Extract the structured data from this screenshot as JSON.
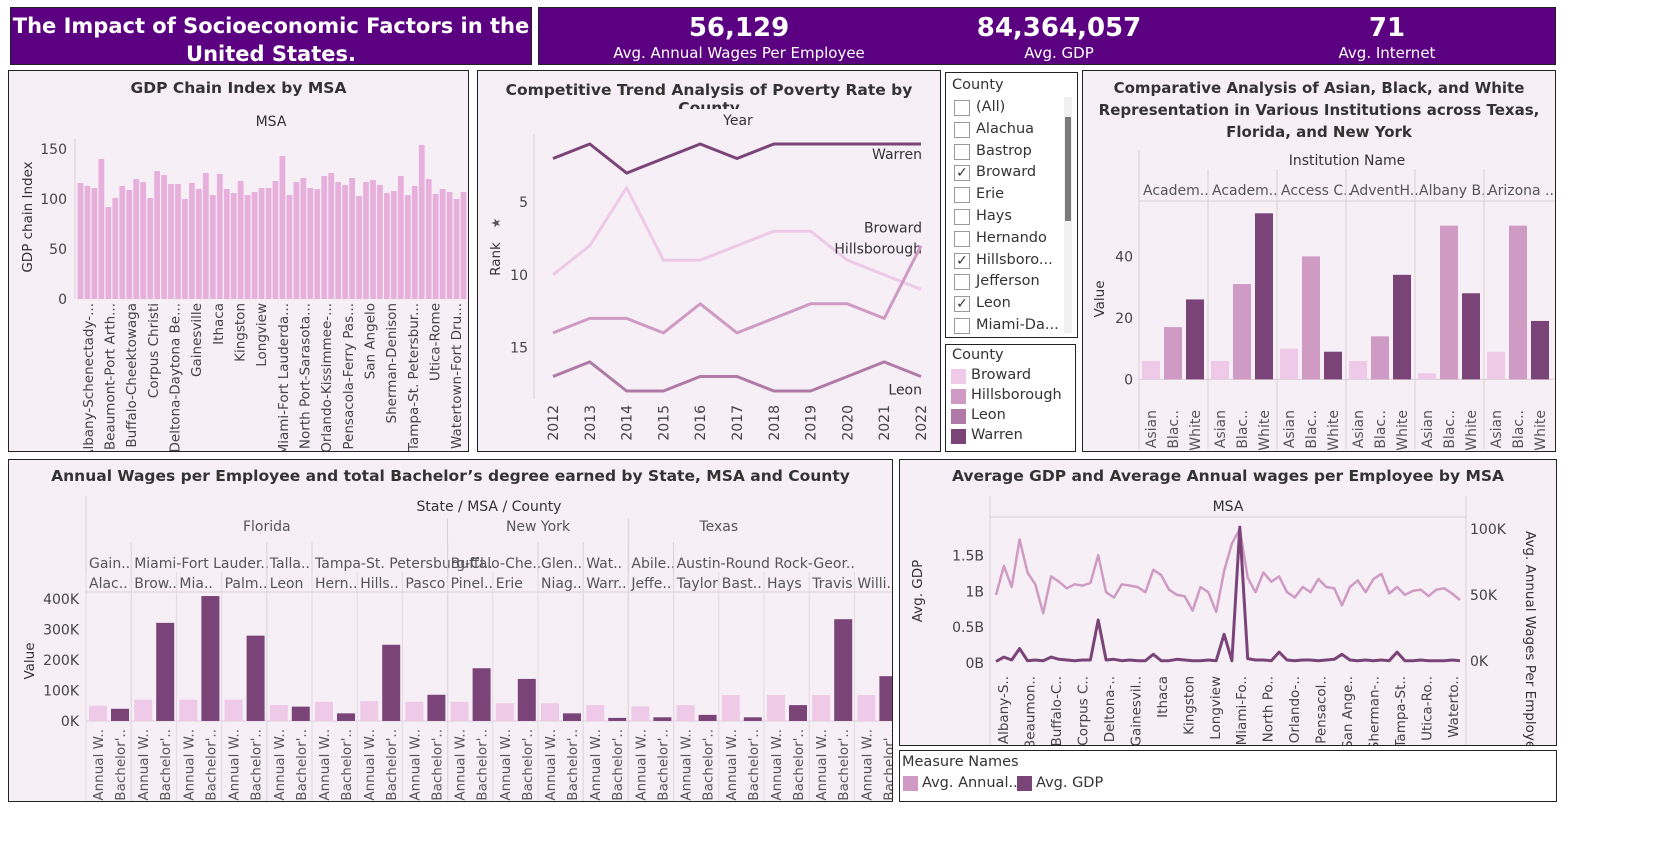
{
  "header": {
    "title": "The Impact of Socioeconomic Factors in the United States.",
    "kpis": [
      {
        "value": "56,129",
        "label": "Avg. Annual Wages Per Employee"
      },
      {
        "value": "84,364,057",
        "label": "Avg. GDP"
      },
      {
        "value": "71",
        "label": "Avg. Internet"
      }
    ]
  },
  "colors": {
    "header_bg": "#5a0080",
    "panel_bg": "#f6eff5",
    "light_pink": "#eec9e8",
    "mid_pink": "#cf9bc4",
    "mauve": "#b07aa8",
    "dark_purple": "#7a4478",
    "bar_pink": "#e7afdc"
  },
  "filter": {
    "title": "County",
    "items": [
      {
        "label": "(All)",
        "checked": false
      },
      {
        "label": "Alachua",
        "checked": false
      },
      {
        "label": "Bastrop",
        "checked": false
      },
      {
        "label": "Broward",
        "checked": true
      },
      {
        "label": "Erie",
        "checked": false
      },
      {
        "label": "Hays",
        "checked": false
      },
      {
        "label": "Hernando",
        "checked": false
      },
      {
        "label": "Hillsboro...",
        "checked": true
      },
      {
        "label": "Jefferson",
        "checked": false
      },
      {
        "label": "Leon",
        "checked": true
      },
      {
        "label": "Miami-Da...",
        "checked": false
      }
    ]
  },
  "county_legend": {
    "title": "County",
    "items": [
      {
        "label": "Broward",
        "color": "#eec9e8"
      },
      {
        "label": "Hillsborough",
        "color": "#cf9bc4"
      },
      {
        "label": "Leon",
        "color": "#b07aa8"
      },
      {
        "label": "Warren",
        "color": "#7a4478"
      }
    ]
  },
  "measure_legend": {
    "title": "Measure Names",
    "items": [
      {
        "label": "Avg. Annual..",
        "color": "#cf9bc4"
      },
      {
        "label": "Avg. GDP",
        "color": "#7a4478"
      }
    ]
  },
  "chart_data": [
    {
      "id": "gdp_chain",
      "type": "bar",
      "title": "GDP Chain Index by MSA",
      "header": "MSA",
      "ylabel": "GDP chain Index",
      "ylim": [
        0,
        160
      ],
      "yticks": [
        0,
        50,
        100,
        150
      ],
      "values": [
        116,
        113,
        111,
        140,
        92,
        101,
        113,
        109,
        120,
        117,
        101,
        128,
        124,
        115,
        115,
        100,
        116,
        110,
        126,
        104,
        125,
        110,
        106,
        118,
        104,
        107,
        111,
        111,
        118,
        143,
        104,
        117,
        121,
        111,
        110,
        123,
        126,
        117,
        114,
        121,
        103,
        117,
        119,
        114,
        106,
        108,
        123,
        104,
        113,
        154,
        120,
        105,
        110,
        107,
        100,
        107
      ],
      "tick_labels": [
        "Albany-Schenectady-...",
        "Beaumont-Port Arth...",
        "Buffalo-Cheektowaga",
        "Corpus Christi",
        "Deltona-Daytona Be...",
        "Gainesville",
        "Ithaca",
        "Kingston",
        "Longview",
        "Miami-Fort Lauderda...",
        "North Port-Sarasota...",
        "Orlando-Kissimmee-...",
        "Pensacola-Ferry Pas...",
        "San Angelo",
        "Sherman-Denison",
        "Tampa-St. Petersbur...",
        "Utica-Rome",
        "Watertown-Fort Dru..."
      ]
    },
    {
      "id": "poverty_rank",
      "type": "line",
      "title": "Competitive Trend Analysis of Poverty Rate by County",
      "header": "Year",
      "ylabel": "Rank",
      "ylim": [
        1,
        18
      ],
      "yticks": [
        5,
        10,
        15
      ],
      "x": [
        2012,
        2013,
        2014,
        2015,
        2016,
        2017,
        2018,
        2019,
        2020,
        2021,
        2022
      ],
      "series": [
        {
          "name": "Warren",
          "color": "#7a4478",
          "values": [
            2,
            1,
            3,
            2,
            1,
            2,
            1,
            1,
            1,
            1,
            1
          ]
        },
        {
          "name": "Hillsborough",
          "color": "#eec9e8",
          "values": [
            10,
            8,
            4,
            9,
            9,
            8,
            7,
            7,
            9,
            10,
            11
          ]
        },
        {
          "name": "Broward",
          "color": "#cf9bc4",
          "values": [
            14,
            13,
            13,
            14,
            12,
            14,
            13,
            12,
            12,
            13,
            8
          ]
        },
        {
          "name": "Leon",
          "color": "#b07aa8",
          "values": [
            17,
            16,
            18,
            18,
            17,
            17,
            18,
            18,
            17,
            16,
            17
          ]
        }
      ]
    },
    {
      "id": "representation",
      "type": "bar",
      "title": "Comparative Analysis of Asian, Black, and White Representation in Various Institutions across Texas, Florida, and New York",
      "header": "Institution Name",
      "ylabel": "Value",
      "ylim": [
        -8,
        58
      ],
      "yticks": [
        0,
        20,
        40
      ],
      "groups": [
        "Academ..",
        "Academ..",
        "Access C..",
        "AdventH..",
        "Albany B..",
        "Arizona .."
      ],
      "categories": [
        "Asian",
        "Blac..",
        "White"
      ],
      "values": [
        [
          6,
          17,
          26
        ],
        [
          6,
          31,
          54
        ],
        [
          10,
          40,
          9
        ],
        [
          6,
          14,
          34
        ],
        [
          2,
          50,
          28
        ],
        [
          9,
          50,
          19
        ]
      ]
    },
    {
      "id": "wages_bachelors",
      "type": "bar",
      "title": "Annual Wages per Employee and total Bachelor’s degree earned by State, MSA and County",
      "header": "State / MSA  / County",
      "ylabel": "Value",
      "ylim": [
        -10000,
        420000
      ],
      "yticks": [
        0,
        100000,
        200000,
        300000,
        400000
      ],
      "ytick_labels": [
        "0K",
        "100K",
        "200K",
        "300K",
        "400K"
      ],
      "states": [
        {
          "name": "Florida",
          "count": 8
        },
        {
          "name": "New York",
          "count": 4
        },
        {
          "name": "Texas",
          "count": 4
        }
      ],
      "msas": [
        {
          "name": "Gain..",
          "count": 1
        },
        {
          "name": "Miami-Fort Lauder..",
          "count": 3
        },
        {
          "name": "Talla..",
          "count": 1
        },
        {
          "name": "Tampa-St. Petersburg-Cl..",
          "count": 3
        },
        {
          "name": "Buffalo-Che..",
          "count": 2
        },
        {
          "name": "Glen..",
          "count": 1
        },
        {
          "name": "Wat..",
          "count": 1
        },
        {
          "name": "Abile..",
          "count": 1
        },
        {
          "name": "Austin-Round Rock-Geor..",
          "count": 3
        }
      ],
      "counties": [
        "Alac..",
        "Brow..",
        "Mia..",
        "Palm..",
        "Leon",
        "Hern..",
        "Hills..",
        "Pasco",
        "Pinel..",
        "Erie",
        "Niag..",
        "Warr..",
        "Jeffe..",
        "Taylor",
        "Bast..",
        "Hays",
        "Travis",
        "Willi.."
      ],
      "categories": [
        "Annual W..",
        "Bachelor'.."
      ],
      "values": [
        [
          50000,
          40000
        ],
        [
          70000,
          322000
        ],
        [
          70000,
          410000
        ],
        [
          70000,
          280000
        ],
        [
          52000,
          47000
        ],
        [
          63000,
          25000
        ],
        [
          65000,
          250000
        ],
        [
          63000,
          86000
        ],
        [
          63000,
          173000
        ],
        [
          58000,
          138000
        ],
        [
          58000,
          25000
        ],
        [
          52000,
          10000
        ],
        [
          48000,
          12000
        ],
        [
          52000,
          20000
        ],
        [
          85000,
          12000
        ],
        [
          85000,
          52000
        ],
        [
          85000,
          334000
        ],
        [
          85000,
          147000
        ]
      ]
    },
    {
      "id": "gdp_wages_msa",
      "type": "line",
      "title": "Average GDP and Average Annual wages per Employee by MSA",
      "header": "MSA",
      "ylabel": "Avg. GDP",
      "ylabel_right": "Avg. Annual Wages Per Employee",
      "ylim": [
        -0.1,
        1.93
      ],
      "yticks": [
        0,
        0.5,
        1,
        1.5
      ],
      "ytick_labels": [
        "0B",
        "0.5B",
        "1B",
        "1.5B"
      ],
      "ylim_right": [
        -7000,
        103000
      ],
      "yticks_right": [
        0,
        50000,
        100000
      ],
      "ytick_labels_right": [
        "0K",
        "50K",
        "100K"
      ],
      "tick_labels": [
        "Albany-S..",
        "Beaumon..",
        "Buffalo-C..",
        "Corpus C..",
        "Deltona-..",
        "Gainesvil..",
        "Ithaca",
        "Kingston",
        "Longview",
        "Miami-Fo..",
        "North Po..",
        "Orlando-..",
        "Pensacol..",
        "San Ange..",
        "Sherman-..",
        "Tampa-St..",
        "Utica-Ro..",
        "Waterto.."
      ],
      "series": [
        {
          "name": "Avg. Annual..",
          "axis": "right",
          "color": "#cf9bc4",
          "values": [
            50000,
            72000,
            56000,
            92000,
            67000,
            58000,
            36000,
            64000,
            60000,
            55000,
            58000,
            57000,
            59000,
            80000,
            52000,
            48000,
            58000,
            57000,
            56000,
            52000,
            69000,
            65000,
            54000,
            50000,
            49000,
            38000,
            56000,
            52000,
            37000,
            68000,
            89000,
            100000,
            63000,
            52000,
            67000,
            60000,
            64000,
            52000,
            48000,
            56000,
            52000,
            62000,
            56000,
            55000,
            42000,
            56000,
            61000,
            52000,
            62000,
            66000,
            51000,
            56000,
            50000,
            53000,
            54000,
            49000,
            54000,
            55000,
            51000,
            46000
          ]
        },
        {
          "name": "Avg. GDP",
          "axis": "left",
          "color": "#7a4478",
          "values": [
            0.02,
            0.08,
            0.04,
            0.2,
            0.03,
            0.04,
            0.03,
            0.08,
            0.05,
            0.04,
            0.03,
            0.04,
            0.04,
            0.6,
            0.04,
            0.05,
            0.03,
            0.04,
            0.03,
            0.03,
            0.12,
            0.03,
            0.03,
            0.05,
            0.04,
            0.03,
            0.03,
            0.04,
            0.03,
            0.4,
            0.03,
            1.9,
            0.06,
            0.04,
            0.04,
            0.03,
            0.15,
            0.04,
            0.03,
            0.04,
            0.04,
            0.03,
            0.04,
            0.05,
            0.12,
            0.04,
            0.03,
            0.04,
            0.03,
            0.04,
            0.03,
            0.15,
            0.03,
            0.03,
            0.04,
            0.03,
            0.03,
            0.03,
            0.04,
            0.03
          ]
        }
      ]
    }
  ]
}
